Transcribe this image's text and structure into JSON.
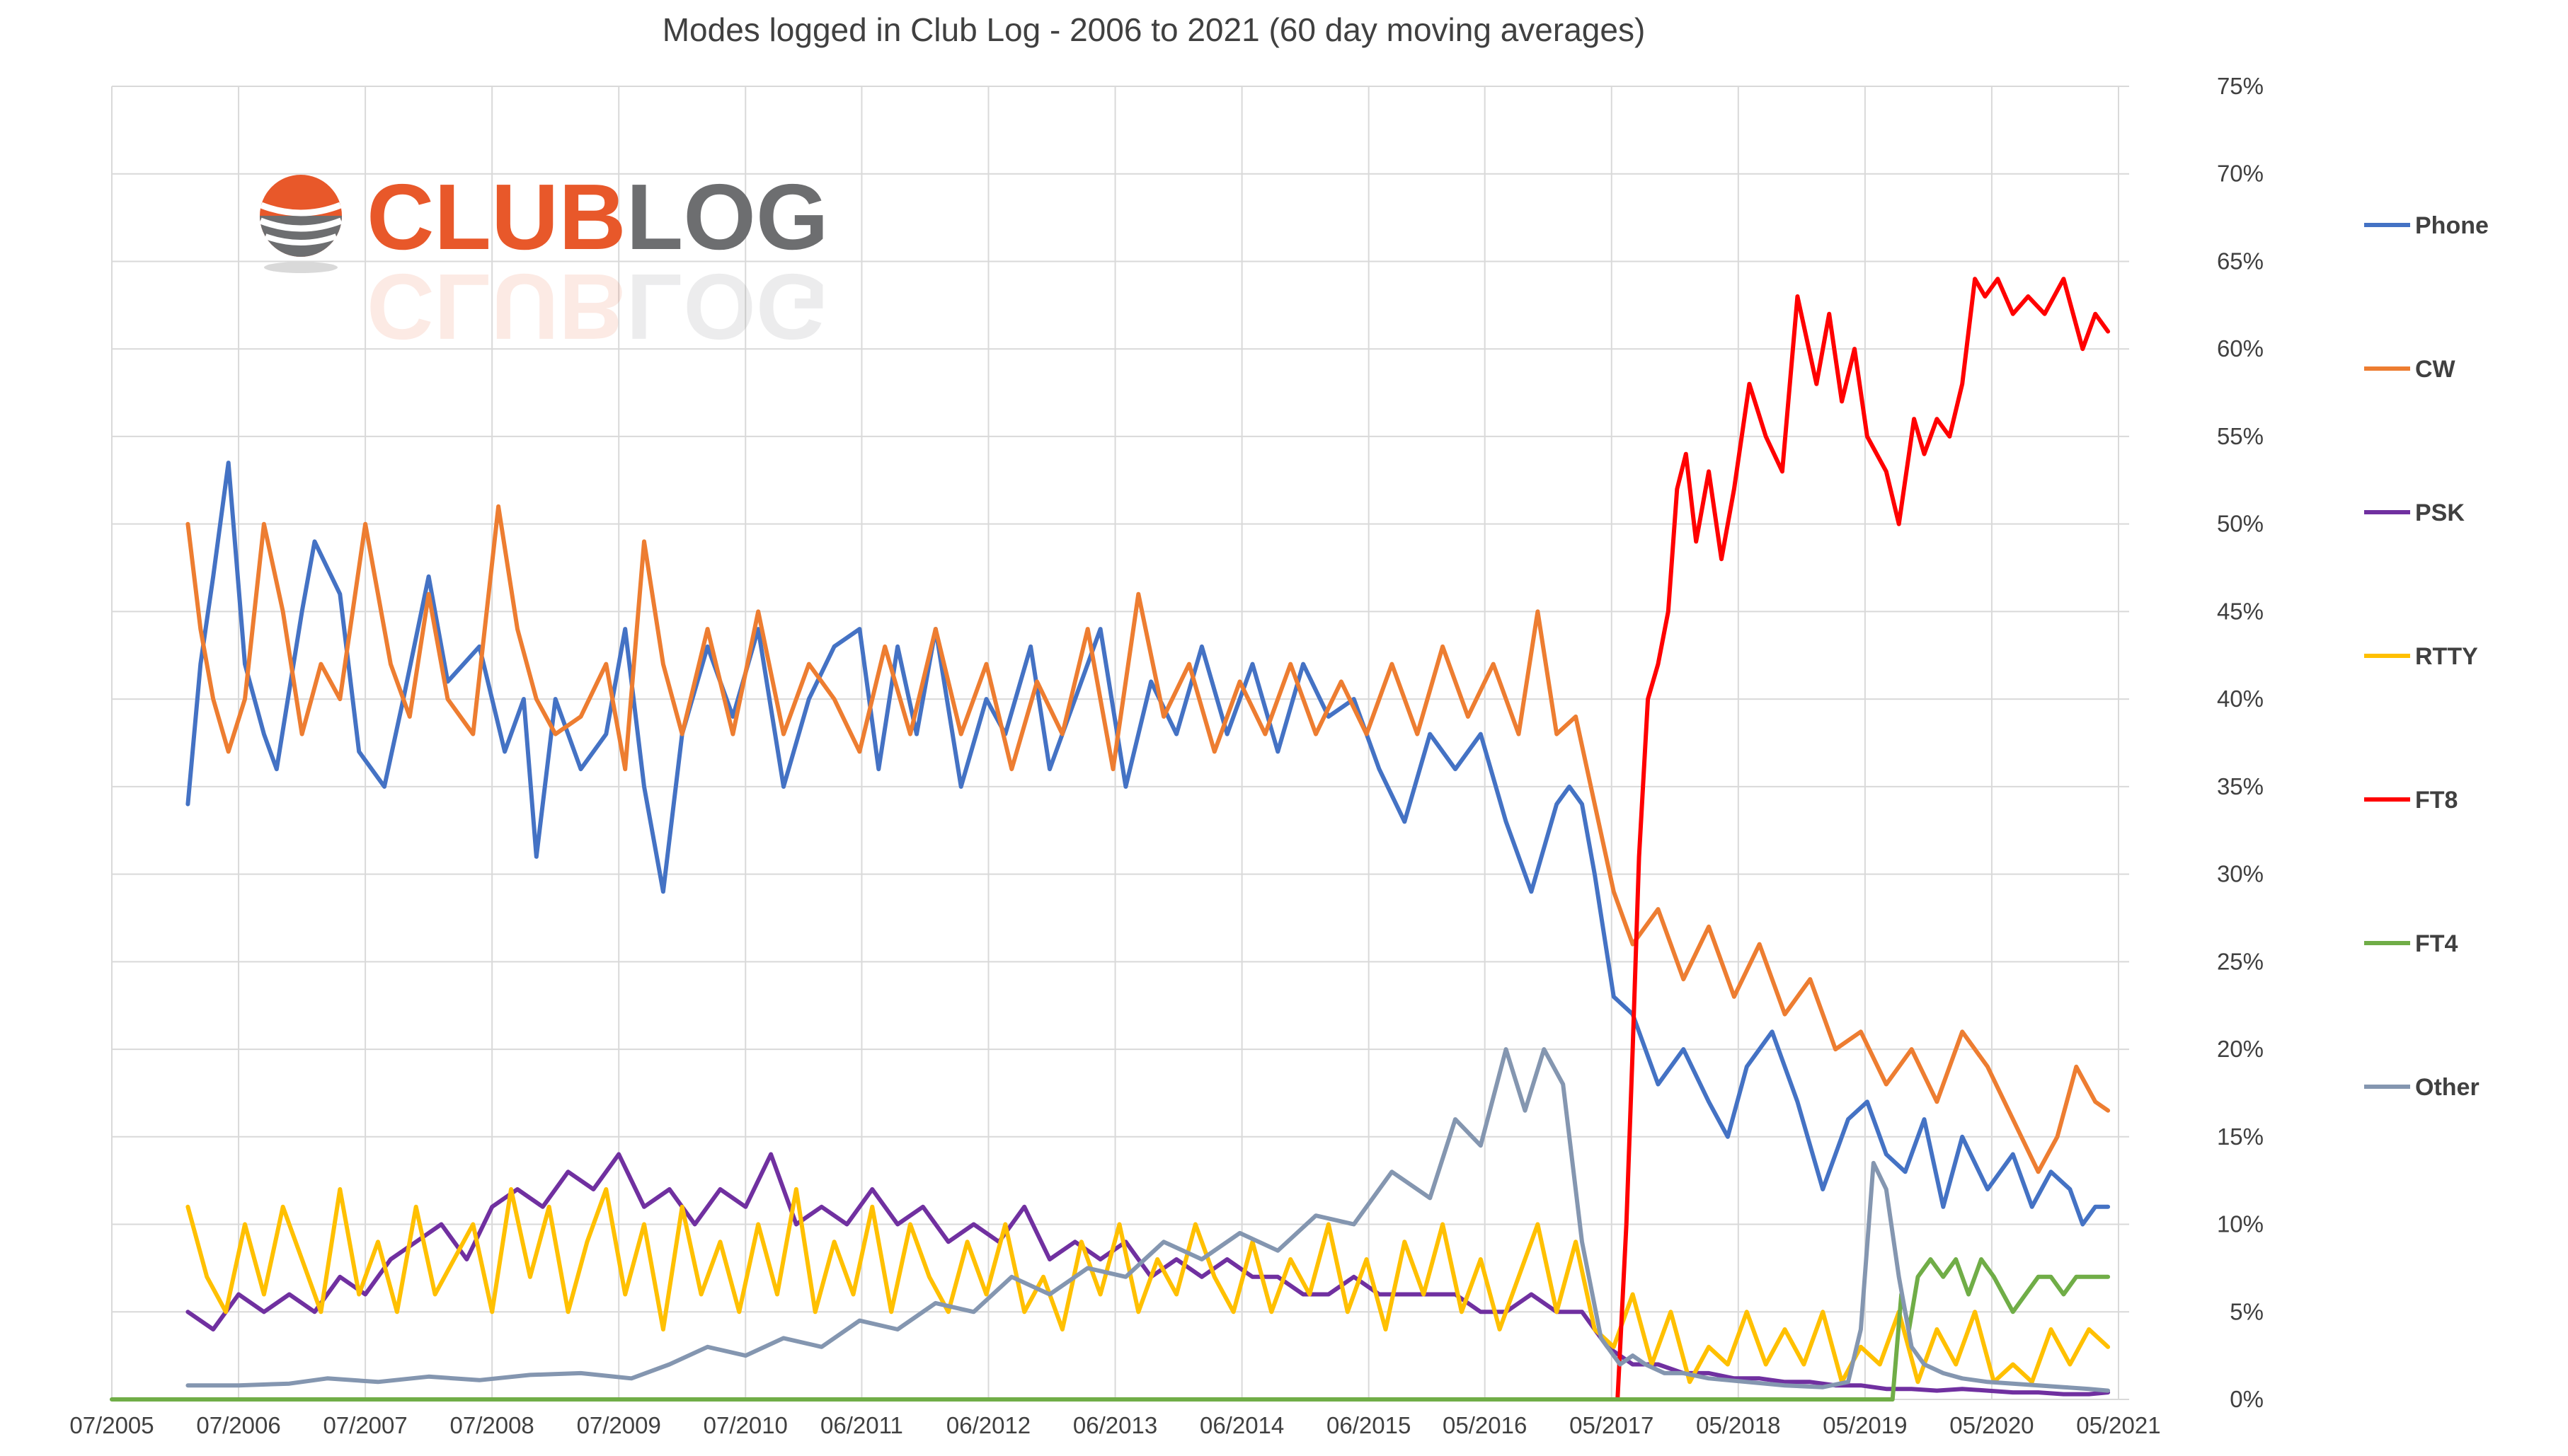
{
  "chart_data": {
    "type": "line",
    "title": "Modes logged in Club Log - 2006 to 2021 (60 day moving averages)",
    "xlabel": "",
    "ylabel": "",
    "y_axis_position": "right",
    "ylim": [
      0,
      75
    ],
    "y_ticks": [
      0,
      5,
      10,
      15,
      20,
      25,
      30,
      35,
      40,
      45,
      50,
      55,
      60,
      65,
      70,
      75
    ],
    "y_tick_labels": [
      "0%",
      "5%",
      "10%",
      "15%",
      "20%",
      "25%",
      "30%",
      "35%",
      "40%",
      "45%",
      "50%",
      "55%",
      "60%",
      "65%",
      "70%",
      "75%"
    ],
    "xlim": [
      2005.5,
      2021.417
    ],
    "x_ticks": [
      2005.5,
      2006.5,
      2007.5,
      2008.5,
      2009.5,
      2010.5,
      2011.417,
      2012.417,
      2013.417,
      2014.417,
      2015.417,
      2016.333,
      2017.333,
      2018.333,
      2019.333,
      2020.333,
      2021.333
    ],
    "x_tick_labels": [
      "07/2005",
      "07/2006",
      "07/2007",
      "07/2008",
      "07/2009",
      "07/2010",
      "06/2011",
      "06/2012",
      "06/2013",
      "06/2014",
      "06/2015",
      "05/2016",
      "05/2017",
      "05/2018",
      "05/2019",
      "05/2020",
      "05/2021"
    ],
    "grid": true,
    "legend_position": "right",
    "series": [
      {
        "name": "Phone",
        "color": "#4472c4",
        "x": [
          2006.1,
          2006.2,
          2006.3,
          2006.42,
          2006.55,
          2006.7,
          2006.8,
          2007.0,
          2007.1,
          2007.3,
          2007.45,
          2007.65,
          2007.8,
          2008.0,
          2008.15,
          2008.4,
          2008.6,
          2008.75,
          2008.85,
          2009.0,
          2009.2,
          2009.4,
          2009.55,
          2009.7,
          2009.85,
          2010.0,
          2010.2,
          2010.4,
          2010.6,
          2010.8,
          2011.0,
          2011.2,
          2011.4,
          2011.55,
          2011.7,
          2011.85,
          2012.0,
          2012.2,
          2012.4,
          2012.55,
          2012.75,
          2012.9,
          2013.1,
          2013.3,
          2013.5,
          2013.7,
          2013.9,
          2014.1,
          2014.3,
          2014.5,
          2014.7,
          2014.9,
          2015.1,
          2015.3,
          2015.5,
          2015.7,
          2015.9,
          2016.1,
          2016.3,
          2016.5,
          2016.7,
          2016.9,
          2017.0,
          2017.1,
          2017.2,
          2017.35,
          2017.5,
          2017.7,
          2017.9,
          2018.1,
          2018.25,
          2018.4,
          2018.6,
          2018.8,
          2019.0,
          2019.2,
          2019.35,
          2019.5,
          2019.65,
          2019.8,
          2019.95,
          2020.1,
          2020.3,
          2020.5,
          2020.65,
          2020.8,
          2020.95,
          2021.05,
          2021.15,
          2021.25
        ],
        "values": [
          34,
          42,
          47,
          53.5,
          42,
          38,
          36,
          45,
          49,
          46,
          37,
          35,
          40,
          47,
          41,
          43,
          37,
          40,
          31,
          40,
          36,
          38,
          44,
          35,
          29,
          38,
          43,
          39,
          44,
          35,
          40,
          43,
          44,
          36,
          43,
          38,
          44,
          35,
          40,
          38,
          43,
          36,
          40,
          44,
          35,
          41,
          38,
          43,
          38,
          42,
          37,
          42,
          39,
          40,
          36,
          33,
          38,
          36,
          38,
          33,
          29,
          34,
          35,
          34,
          30,
          23,
          22,
          18,
          20,
          17,
          15,
          19,
          21,
          17,
          12,
          16,
          17,
          14,
          13,
          16,
          11,
          15,
          12,
          14,
          11,
          13,
          12,
          10,
          11,
          11
        ]
      },
      {
        "name": "CW",
        "color": "#ed7d31",
        "x": [
          2006.1,
          2006.2,
          2006.3,
          2006.42,
          2006.55,
          2006.7,
          2006.85,
          2007.0,
          2007.15,
          2007.3,
          2007.5,
          2007.7,
          2007.85,
          2008.0,
          2008.15,
          2008.35,
          2008.55,
          2008.7,
          2008.85,
          2009.0,
          2009.2,
          2009.4,
          2009.55,
          2009.7,
          2009.85,
          2010.0,
          2010.2,
          2010.4,
          2010.6,
          2010.8,
          2011.0,
          2011.2,
          2011.4,
          2011.6,
          2011.8,
          2012.0,
          2012.2,
          2012.4,
          2012.6,
          2012.8,
          2013.0,
          2013.2,
          2013.4,
          2013.6,
          2013.8,
          2014.0,
          2014.2,
          2014.4,
          2014.6,
          2014.8,
          2015.0,
          2015.2,
          2015.4,
          2015.6,
          2015.8,
          2016.0,
          2016.2,
          2016.4,
          2016.6,
          2016.75,
          2016.9,
          2017.05,
          2017.2,
          2017.35,
          2017.5,
          2017.7,
          2017.9,
          2018.1,
          2018.3,
          2018.5,
          2018.7,
          2018.9,
          2019.1,
          2019.3,
          2019.5,
          2019.7,
          2019.9,
          2020.1,
          2020.3,
          2020.5,
          2020.7,
          2020.85,
          2021.0,
          2021.15,
          2021.25
        ],
        "values": [
          50,
          44,
          40,
          37,
          40,
          50,
          45,
          38,
          42,
          40,
          50,
          42,
          39,
          46,
          40,
          38,
          51,
          44,
          40,
          38,
          39,
          42,
          36,
          49,
          42,
          38,
          44,
          38,
          45,
          38,
          42,
          40,
          37,
          43,
          38,
          44,
          38,
          42,
          36,
          41,
          38,
          44,
          36,
          46,
          39,
          42,
          37,
          41,
          38,
          42,
          38,
          41,
          38,
          42,
          38,
          43,
          39,
          42,
          38,
          45,
          38,
          39,
          34,
          29,
          26,
          28,
          24,
          27,
          23,
          26,
          22,
          24,
          20,
          21,
          18,
          20,
          17,
          21,
          19,
          16,
          13,
          15,
          19,
          17,
          16.5
        ]
      },
      {
        "name": "PSK",
        "color": "#7030a0",
        "x": [
          2006.1,
          2006.3,
          2006.5,
          2006.7,
          2006.9,
          2007.1,
          2007.3,
          2007.5,
          2007.7,
          2007.9,
          2008.1,
          2008.3,
          2008.5,
          2008.7,
          2008.9,
          2009.1,
          2009.3,
          2009.5,
          2009.7,
          2009.9,
          2010.1,
          2010.3,
          2010.5,
          2010.7,
          2010.9,
          2011.1,
          2011.3,
          2011.5,
          2011.7,
          2011.9,
          2012.1,
          2012.3,
          2012.5,
          2012.7,
          2012.9,
          2013.1,
          2013.3,
          2013.5,
          2013.7,
          2013.9,
          2014.1,
          2014.3,
          2014.5,
          2014.7,
          2014.9,
          2015.1,
          2015.3,
          2015.5,
          2015.7,
          2015.9,
          2016.1,
          2016.3,
          2016.5,
          2016.7,
          2016.9,
          2017.1,
          2017.3,
          2017.5,
          2017.7,
          2017.9,
          2018.1,
          2018.3,
          2018.5,
          2018.7,
          2018.9,
          2019.1,
          2019.3,
          2019.5,
          2019.7,
          2019.9,
          2020.1,
          2020.3,
          2020.5,
          2020.7,
          2020.9,
          2021.1,
          2021.25
        ],
        "values": [
          5,
          4,
          6,
          5,
          6,
          5,
          7,
          6,
          8,
          9,
          10,
          8,
          11,
          12,
          11,
          13,
          12,
          14,
          11,
          12,
          10,
          12,
          11,
          14,
          10,
          11,
          10,
          12,
          10,
          11,
          9,
          10,
          9,
          11,
          8,
          9,
          8,
          9,
          7,
          8,
          7,
          8,
          7,
          7,
          6,
          6,
          7,
          6,
          6,
          6,
          6,
          5,
          5,
          6,
          5,
          5,
          3,
          2,
          2,
          1.5,
          1.5,
          1.2,
          1.2,
          1,
          1,
          0.8,
          0.8,
          0.6,
          0.6,
          0.5,
          0.6,
          0.5,
          0.4,
          0.4,
          0.3,
          0.3,
          0.4
        ]
      },
      {
        "name": "RTTY",
        "color": "#ffc000",
        "x": [
          2006.1,
          2006.25,
          2006.4,
          2006.55,
          2006.7,
          2006.85,
          2007.0,
          2007.15,
          2007.3,
          2007.45,
          2007.6,
          2007.75,
          2007.9,
          2008.05,
          2008.2,
          2008.35,
          2008.5,
          2008.65,
          2008.8,
          2008.95,
          2009.1,
          2009.25,
          2009.4,
          2009.55,
          2009.7,
          2009.85,
          2010.0,
          2010.15,
          2010.3,
          2010.45,
          2010.6,
          2010.75,
          2010.9,
          2011.05,
          2011.2,
          2011.35,
          2011.5,
          2011.65,
          2011.8,
          2011.95,
          2012.1,
          2012.25,
          2012.4,
          2012.55,
          2012.7,
          2012.85,
          2013.0,
          2013.15,
          2013.3,
          2013.45,
          2013.6,
          2013.75,
          2013.9,
          2014.05,
          2014.2,
          2014.35,
          2014.5,
          2014.65,
          2014.8,
          2014.95,
          2015.1,
          2015.25,
          2015.4,
          2015.55,
          2015.7,
          2015.85,
          2016.0,
          2016.15,
          2016.3,
          2016.45,
          2016.6,
          2016.75,
          2016.9,
          2017.05,
          2017.2,
          2017.35,
          2017.5,
          2017.65,
          2017.8,
          2017.95,
          2018.1,
          2018.25,
          2018.4,
          2018.55,
          2018.7,
          2018.85,
          2019.0,
          2019.15,
          2019.3,
          2019.45,
          2019.6,
          2019.75,
          2019.9,
          2020.05,
          2020.2,
          2020.35,
          2020.5,
          2020.65,
          2020.8,
          2020.95,
          2021.1,
          2021.25
        ],
        "values": [
          11,
          7,
          5,
          10,
          6,
          11,
          8,
          5,
          12,
          6,
          9,
          5,
          11,
          6,
          8,
          10,
          5,
          12,
          7,
          11,
          5,
          9,
          12,
          6,
          10,
          4,
          11,
          6,
          9,
          5,
          10,
          6,
          12,
          5,
          9,
          6,
          11,
          5,
          10,
          7,
          5,
          9,
          6,
          10,
          5,
          7,
          4,
          9,
          6,
          10,
          5,
          8,
          6,
          10,
          7,
          5,
          9,
          5,
          8,
          6,
          10,
          5,
          8,
          4,
          9,
          6,
          10,
          5,
          8,
          4,
          7,
          10,
          5,
          9,
          4,
          3,
          6,
          2,
          5,
          1,
          3,
          2,
          5,
          2,
          4,
          2,
          5,
          1,
          3,
          2,
          5,
          1,
          4,
          2,
          5,
          1,
          2,
          1,
          4,
          2,
          4,
          3
        ]
      },
      {
        "name": "FT8",
        "color": "#ff0000",
        "x": [
          2017.38,
          2017.45,
          2017.5,
          2017.55,
          2017.62,
          2017.7,
          2017.78,
          2017.85,
          2017.92,
          2018.0,
          2018.1,
          2018.2,
          2018.3,
          2018.42,
          2018.55,
          2018.68,
          2018.8,
          2018.95,
          2019.05,
          2019.15,
          2019.25,
          2019.35,
          2019.5,
          2019.6,
          2019.72,
          2019.8,
          2019.9,
          2020.0,
          2020.1,
          2020.2,
          2020.28,
          2020.38,
          2020.5,
          2020.62,
          2020.75,
          2020.9,
          2021.05,
          2021.15,
          2021.25
        ],
        "values": [
          0,
          10,
          20,
          31,
          40,
          42,
          45,
          52,
          54,
          49,
          53,
          48,
          52,
          58,
          55,
          53,
          63,
          58,
          62,
          57,
          60,
          55,
          53,
          50,
          56,
          54,
          56,
          55,
          58,
          64,
          63,
          64,
          62,
          63,
          62,
          64,
          60,
          62,
          61
        ]
      },
      {
        "name": "FT4",
        "color": "#70ad47",
        "x": [
          2005.5,
          2019.55,
          2019.62,
          2019.68,
          2019.75,
          2019.85,
          2019.95,
          2020.05,
          2020.15,
          2020.25,
          2020.35,
          2020.5,
          2020.6,
          2020.7,
          2020.8,
          2020.9,
          2021.0,
          2021.1,
          2021.25
        ],
        "values": [
          0,
          0,
          6,
          4,
          7,
          8,
          7,
          8,
          6,
          8,
          7,
          5,
          6,
          7,
          7,
          6,
          7,
          7,
          7
        ]
      },
      {
        "name": "Other",
        "color": "#8496b0",
        "x": [
          2006.1,
          2006.5,
          2006.9,
          2007.2,
          2007.6,
          2008.0,
          2008.4,
          2008.8,
          2009.2,
          2009.6,
          2009.9,
          2010.2,
          2010.5,
          2010.8,
          2011.1,
          2011.4,
          2011.7,
          2012.0,
          2012.3,
          2012.6,
          2012.9,
          2013.2,
          2013.5,
          2013.8,
          2014.1,
          2014.4,
          2014.7,
          2015.0,
          2015.3,
          2015.6,
          2015.9,
          2016.1,
          2016.3,
          2016.5,
          2016.65,
          2016.8,
          2016.95,
          2017.1,
          2017.25,
          2017.4,
          2017.5,
          2017.6,
          2017.75,
          2017.9,
          2018.1,
          2018.4,
          2018.7,
          2019.0,
          2019.2,
          2019.3,
          2019.4,
          2019.5,
          2019.6,
          2019.7,
          2019.8,
          2019.95,
          2020.1,
          2020.3,
          2020.5,
          2020.7,
          2020.9,
          2021.1,
          2021.25
        ],
        "values": [
          0.8,
          0.8,
          0.9,
          1.2,
          1.0,
          1.3,
          1.1,
          1.4,
          1.5,
          1.2,
          2.0,
          3.0,
          2.5,
          3.5,
          3.0,
          4.5,
          4.0,
          5.5,
          5.0,
          7.0,
          6.0,
          7.5,
          7.0,
          9.0,
          8.0,
          9.5,
          8.5,
          10.5,
          10.0,
          13.0,
          11.5,
          16.0,
          14.5,
          20.0,
          16.5,
          20.0,
          18.0,
          9.0,
          3.5,
          2.0,
          2.5,
          2.0,
          1.5,
          1.5,
          1.2,
          1.0,
          0.8,
          0.7,
          1.0,
          4.0,
          13.5,
          12.0,
          7.0,
          3.0,
          2.0,
          1.5,
          1.2,
          1.0,
          0.9,
          0.8,
          0.7,
          0.6,
          0.5
        ]
      }
    ]
  },
  "logo": {
    "part1": "CLUB",
    "part2": "LOG"
  }
}
